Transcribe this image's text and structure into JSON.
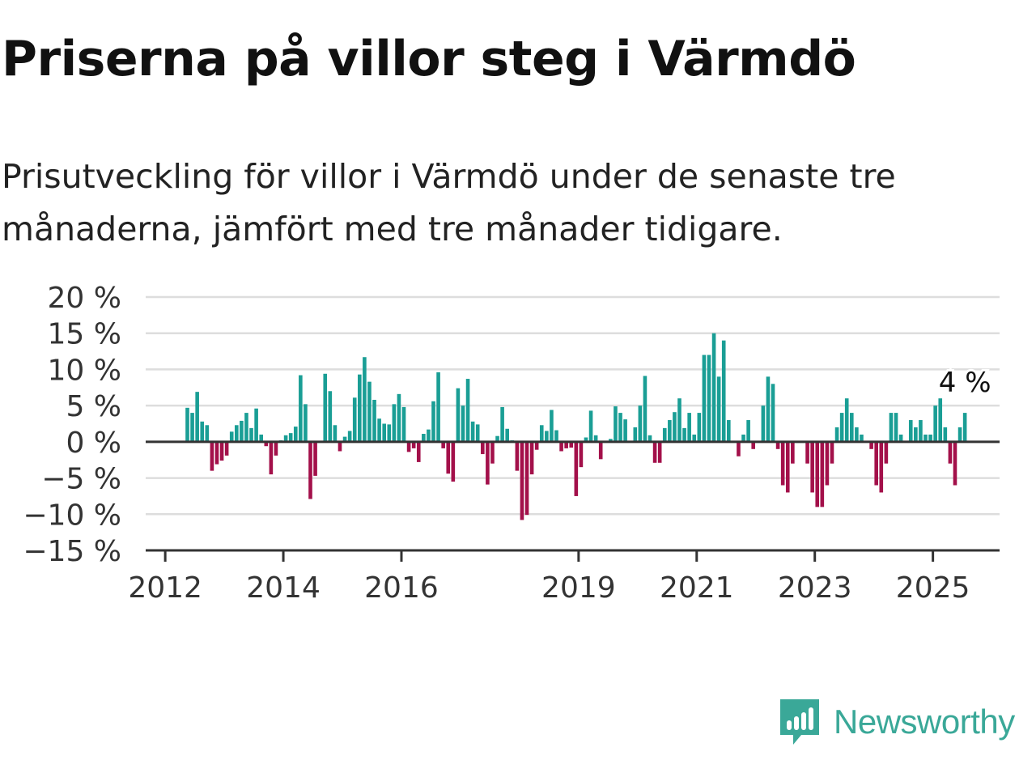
{
  "title": "Priserna på villor steg i Värmdö",
  "subtitle": "Prisutveckling för villor i Värmdö under de senaste tre månaderna, jämfört med tre månader tidigare.",
  "brand": {
    "name": "Newsworthy",
    "icon": "newsworthy-logo-icon",
    "color": "#3aa898"
  },
  "chart_data": {
    "type": "bar",
    "ylim": [
      -15,
      20
    ],
    "yticks": [
      -15,
      -10,
      -5,
      0,
      5,
      10,
      15,
      20
    ],
    "ytick_labels": [
      "−15 %",
      "−10 %",
      "−5 %",
      "0 %",
      "5 %",
      "10 %",
      "15 %",
      "20 %"
    ],
    "xticks": [
      {
        "year": 2012,
        "label": "2012"
      },
      {
        "year": 2014,
        "label": "2014"
      },
      {
        "year": 2016,
        "label": "2016"
      },
      {
        "year": 2019,
        "label": "2019"
      },
      {
        "year": 2021,
        "label": "2021"
      },
      {
        "year": 2023,
        "label": "2023"
      },
      {
        "year": 2025,
        "label": "2025"
      }
    ],
    "x_start": "2012-05",
    "positive_color": "#1a9e95",
    "negative_color": "#a3104a",
    "grid": true,
    "values": [
      4.7,
      4,
      6.9,
      2.8,
      2.3,
      -4,
      -3.1,
      -2.6,
      -1.9,
      1.4,
      2.3,
      2.9,
      4,
      1.9,
      4.6,
      1,
      -0.6,
      -4.5,
      -1.9,
      0.2,
      0.9,
      1.2,
      2.1,
      9.2,
      5.2,
      -7.9,
      -4.7,
      0.1,
      9.4,
      7,
      2.3,
      -1.3,
      0.7,
      1.5,
      6.1,
      9.3,
      11.7,
      8.3,
      5.8,
      3.2,
      2.5,
      2.4,
      5.2,
      6.6,
      4.8,
      -1.4,
      -0.9,
      -2.8,
      1.1,
      1.7,
      5.6,
      9.6,
      -0.9,
      -4.4,
      -5.5,
      7.4,
      5,
      8.7,
      2.8,
      2.4,
      -1.7,
      -5.9,
      -3,
      0.8,
      4.8,
      1.8,
      0.2,
      -4,
      -10.8,
      -10.1,
      -4.5,
      -1.1,
      2.3,
      1.5,
      4.4,
      1.6,
      -1.3,
      -0.9,
      -0.8,
      -7.5,
      -3.5,
      0.6,
      4.3,
      0.9,
      -2.4,
      0.1,
      0.4,
      4.9,
      4,
      3.1,
      0.1,
      2,
      5,
      9.1,
      0.9,
      -2.9,
      -2.9,
      1.9,
      3,
      4.1,
      6,
      1.9,
      4,
      1,
      4,
      12,
      12,
      15,
      9,
      14,
      3,
      0,
      -2,
      1,
      3,
      -1,
      0,
      5,
      9,
      8,
      -1,
      -6,
      -7,
      -3,
      0,
      0,
      -3,
      -7,
      -9,
      -9,
      -6,
      -3,
      2,
      4,
      6,
      4,
      2,
      1,
      0,
      -1,
      -6,
      -7,
      -3,
      4,
      4,
      1,
      0,
      3,
      2,
      3,
      1,
      1,
      5,
      6,
      2,
      -3,
      -6,
      2,
      4
    ],
    "last_label": "4 %"
  }
}
